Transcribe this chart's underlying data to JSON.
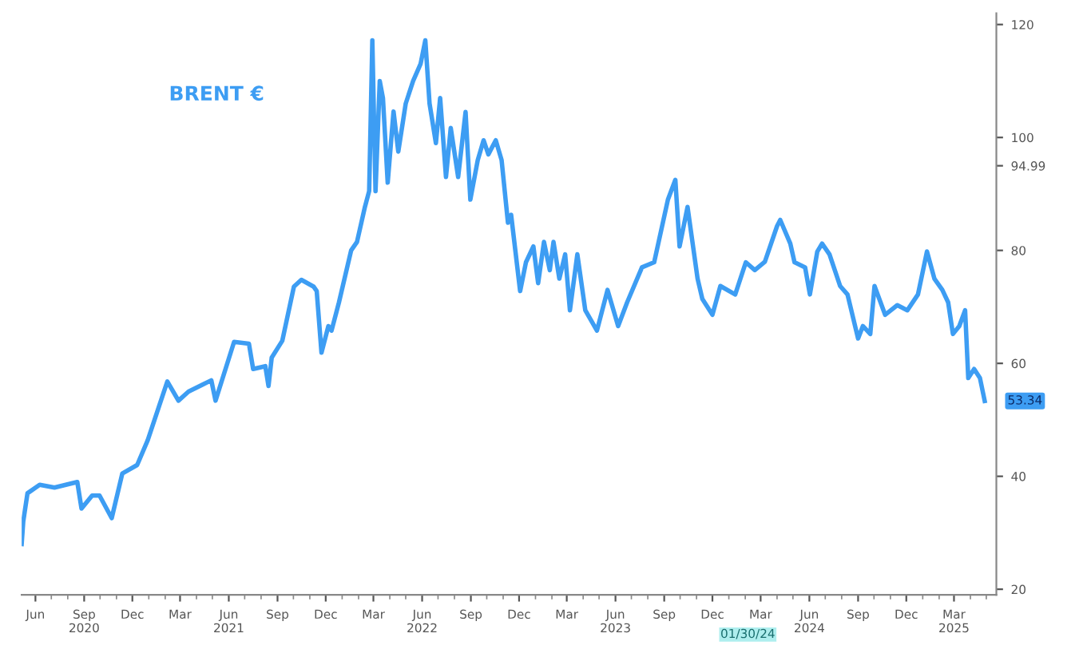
{
  "chart_data": {
    "type": "line",
    "x": [
      "2020-05-06",
      "2020-05-09",
      "2020-05-17",
      "2020-06-09",
      "2020-07-07",
      "2020-08-19",
      "2020-08-27",
      "2020-09-16",
      "2020-09-30",
      "2020-10-23",
      "2020-11-12",
      "2020-12-10",
      "2020-12-30",
      "2021-02-05",
      "2021-02-26",
      "2021-03-17",
      "2021-04-29",
      "2021-05-07",
      "2021-06-11",
      "2021-07-09",
      "2021-07-17",
      "2021-08-09",
      "2021-08-15",
      "2021-08-21",
      "2021-09-10",
      "2021-10-02",
      "2021-10-16",
      "2021-11-08",
      "2021-11-14",
      "2021-11-23",
      "2021-12-06",
      "2021-12-12",
      "2021-12-26",
      "2022-01-18",
      "2022-01-29",
      "2022-02-13",
      "2022-02-21",
      "2022-02-27",
      "2022-03-05",
      "2022-03-13",
      "2022-03-19",
      "2022-03-28",
      "2022-04-08",
      "2022-04-17",
      "2022-05-01",
      "2022-05-15",
      "2022-05-29",
      "2022-06-07",
      "2022-06-15",
      "2022-06-27",
      "2022-07-05",
      "2022-07-16",
      "2022-07-25",
      "2022-08-08",
      "2022-08-22",
      "2022-08-31",
      "2022-09-14",
      "2022-09-25",
      "2022-10-04",
      "2022-10-18",
      "2022-10-29",
      "2022-11-10",
      "2022-11-16",
      "2022-12-03",
      "2022-12-14",
      "2022-12-28",
      "2023-01-06",
      "2023-01-17",
      "2023-01-28",
      "2023-02-04",
      "2023-02-15",
      "2023-02-26",
      "2023-03-07",
      "2023-03-21",
      "2023-04-05",
      "2023-04-27",
      "2023-05-17",
      "2023-06-06",
      "2023-06-23",
      "2023-07-21",
      "2023-08-13",
      "2023-09-08",
      "2023-09-22",
      "2023-09-30",
      "2023-10-15",
      "2023-11-03",
      "2023-11-12",
      "2023-12-01",
      "2023-12-16",
      "2024-01-13",
      "2024-02-02",
      "2024-02-19",
      "2024-03-09",
      "2024-04-01",
      "2024-04-07",
      "2024-04-26",
      "2024-05-04",
      "2024-05-24",
      "2024-06-02",
      "2024-06-16",
      "2024-06-25",
      "2024-07-09",
      "2024-07-29",
      "2024-08-12",
      "2024-09-01",
      "2024-09-10",
      "2024-09-24",
      "2024-10-02",
      "2024-10-22",
      "2024-11-14",
      "2024-12-03",
      "2024-12-23",
      "2025-01-09",
      "2025-01-23",
      "2025-02-07",
      "2025-02-18",
      "2025-02-27",
      "2025-03-11",
      "2025-03-22",
      "2025-03-28",
      "2025-04-08",
      "2025-04-19",
      "2025-04-28"
    ],
    "series": [
      {
        "name": "BRENT €",
        "color": "#3d9df3",
        "values": [
          28,
          32,
          37,
          38.5,
          38,
          39,
          34.3,
          36.6,
          36.6,
          32.6,
          40.5,
          42,
          46.4,
          56.8,
          53.4,
          55,
          57,
          53.4,
          63.8,
          63.5,
          59,
          59.5,
          56,
          61,
          64,
          73.6,
          74.8,
          73.6,
          72.8,
          61.9,
          66.6,
          65.8,
          70.8,
          80,
          81.5,
          87.7,
          90.5,
          117.2,
          90.5,
          110,
          107,
          92,
          104.6,
          97.5,
          106,
          110,
          113,
          117.2,
          106,
          99,
          107,
          93,
          101.7,
          93,
          104.5,
          89,
          96,
          99.5,
          97,
          99.5,
          96,
          84.9,
          86.3,
          72.8,
          77.9,
          80.7,
          74.2,
          81.5,
          76.5,
          81.5,
          75,
          79.3,
          69.4,
          79.3,
          69.4,
          65.8,
          73,
          66.6,
          70.8,
          77,
          77.9,
          89,
          92.5,
          80.7,
          87.7,
          75,
          71.4,
          68.6,
          73.7,
          72.2,
          77.9,
          76.5,
          78,
          84.3,
          85.4,
          81.2,
          77.9,
          77,
          72.2,
          79.8,
          81.2,
          79.3,
          73.7,
          72.2,
          64.4,
          66.6,
          65.2,
          73.7,
          68.6,
          70.3,
          69.4,
          72.2,
          79.8,
          75,
          73,
          70.8,
          65.2,
          66.6,
          69.4,
          57.4,
          59,
          57.4,
          53.34
        ]
      }
    ],
    "xlim": [
      "2020-05-06",
      "2025-05-20"
    ],
    "xticks": [
      {
        "value": "2020-06-01",
        "label": "Jun"
      },
      {
        "value": "2020-09-01",
        "label": "Sep\n2020"
      },
      {
        "value": "2020-12-01",
        "label": "Dec"
      },
      {
        "value": "2021-03-01",
        "label": "Mar"
      },
      {
        "value": "2021-06-01",
        "label": "Jun\n2021"
      },
      {
        "value": "2021-09-01",
        "label": "Sep"
      },
      {
        "value": "2021-12-01",
        "label": "Dec"
      },
      {
        "value": "2022-03-01",
        "label": "Mar"
      },
      {
        "value": "2022-06-01",
        "label": "Jun\n2022"
      },
      {
        "value": "2022-09-01",
        "label": "Sep"
      },
      {
        "value": "2022-12-01",
        "label": "Dec"
      },
      {
        "value": "2023-03-01",
        "label": "Mar"
      },
      {
        "value": "2023-06-01",
        "label": "Jun\n2023"
      },
      {
        "value": "2023-09-01",
        "label": "Sep"
      },
      {
        "value": "2023-12-01",
        "label": "Dec"
      },
      {
        "value": "2024-03-01",
        "label": "Mar"
      },
      {
        "value": "2024-06-01",
        "label": "Jun\n2024"
      },
      {
        "value": "2024-09-01",
        "label": "Sep"
      },
      {
        "value": "2024-12-01",
        "label": "Dec"
      },
      {
        "value": "2025-03-01",
        "label": "Mar\n2025"
      }
    ],
    "ylim": [
      19,
      122
    ],
    "yticks": [
      20,
      40,
      60,
      80,
      {
        "value": 94.99,
        "label": "94.99"
      },
      100,
      120
    ],
    "annotations": [
      {
        "text": "53.34",
        "x": "2025-04-28",
        "y": 53.34
      },
      "01/30/24"
    ],
    "grid": false,
    "legend": false
  }
}
